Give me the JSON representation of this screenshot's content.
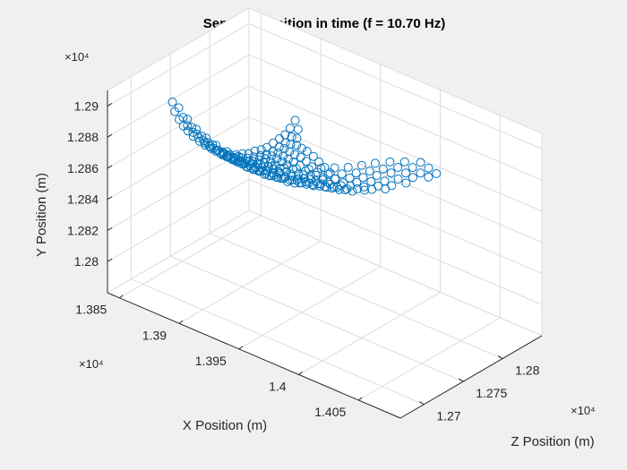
{
  "chart_data": {
    "type": "scatter3d",
    "title": "Sensors position in time (f = 10.70 Hz)",
    "xlabel": "X Position (m)",
    "ylabel": "Y Position (m)",
    "zlabel": "Z Position (m)",
    "x_multiplier": "×10⁴",
    "y_multiplier": "×10⁴",
    "z_multiplier": "×10⁴",
    "x_ticks": [
      "1.385",
      "1.39",
      "1.395",
      "1.4",
      "1.405"
    ],
    "y_ticks": [
      "1.28",
      "1.282",
      "1.284",
      "1.286",
      "1.288",
      "1.29"
    ],
    "z_ticks": [
      "1.27",
      "1.275",
      "1.28"
    ],
    "xlim": [
      13840,
      14085
    ],
    "ylim": [
      12780,
      12910
    ],
    "zlim": [
      12670,
      12850
    ],
    "grid": true,
    "marker": "open-circle",
    "color": "#0072bd",
    "chains": [
      [
        [
          13868,
          12900,
          12710
        ],
        [
          13868,
          12893,
          12713
        ],
        [
          13869,
          12887,
          12717
        ],
        [
          13870,
          12882,
          12721
        ],
        [
          13871,
          12878,
          12725
        ],
        [
          13873,
          12874,
          12729
        ],
        [
          13875,
          12870,
          12734
        ],
        [
          13877,
          12867,
          12738
        ],
        [
          13879,
          12864,
          12743
        ],
        [
          13881,
          12862,
          12748
        ],
        [
          13883,
          12860,
          12752
        ],
        [
          13885,
          12858,
          12757
        ],
        [
          13887,
          12857,
          12762
        ],
        [
          13889,
          12857,
          12767
        ],
        [
          13891,
          12856,
          12772
        ],
        [
          13893,
          12857,
          12777
        ],
        [
          13895,
          12857,
          12782
        ],
        [
          13897,
          12858,
          12786
        ],
        [
          13899,
          12860,
          12791
        ],
        [
          13901,
          12862,
          12796
        ],
        [
          13903,
          12864,
          12800
        ],
        [
          13904,
          12867,
          12805
        ],
        [
          13905,
          12871,
          12810
        ]
      ],
      [
        [
          13872,
          12897,
          12712
        ],
        [
          13873,
          12890,
          12716
        ],
        [
          13874,
          12884,
          12720
        ],
        [
          13876,
          12879,
          12724
        ],
        [
          13878,
          12875,
          12728
        ],
        [
          13880,
          12871,
          12733
        ],
        [
          13882,
          12868,
          12737
        ],
        [
          13884,
          12865,
          12742
        ],
        [
          13886,
          12862,
          12747
        ],
        [
          13888,
          12860,
          12751
        ],
        [
          13890,
          12858,
          12756
        ],
        [
          13892,
          12857,
          12761
        ],
        [
          13894,
          12856,
          12766
        ],
        [
          13896,
          12856,
          12771
        ],
        [
          13898,
          12856,
          12776
        ],
        [
          13900,
          12856,
          12781
        ],
        [
          13902,
          12857,
          12786
        ],
        [
          13904,
          12859,
          12791
        ],
        [
          13906,
          12861,
          12796
        ],
        [
          13908,
          12864,
          12801
        ],
        [
          13910,
          12868,
          12806
        ]
      ],
      [
        [
          13878,
          12891,
          12714
        ],
        [
          13879,
          12885,
          12718
        ],
        [
          13881,
          12880,
          12722
        ],
        [
          13883,
          12875,
          12727
        ],
        [
          13885,
          12871,
          12731
        ],
        [
          13887,
          12867,
          12736
        ],
        [
          13889,
          12864,
          12741
        ],
        [
          13891,
          12862,
          12745
        ],
        [
          13893,
          12860,
          12750
        ],
        [
          13895,
          12858,
          12755
        ],
        [
          13897,
          12857,
          12760
        ],
        [
          13899,
          12856,
          12765
        ],
        [
          13901,
          12856,
          12770
        ],
        [
          13903,
          12856,
          12775
        ],
        [
          13905,
          12857,
          12780
        ],
        [
          13907,
          12858,
          12785
        ],
        [
          13909,
          12860,
          12790
        ],
        [
          13911,
          12862,
          12795
        ],
        [
          13913,
          12865,
          12800
        ]
      ],
      [
        [
          13884,
          12886,
          12716
        ],
        [
          13886,
          12881,
          12720
        ],
        [
          13888,
          12876,
          12725
        ],
        [
          13890,
          12872,
          12729
        ],
        [
          13892,
          12868,
          12734
        ],
        [
          13894,
          12865,
          12739
        ],
        [
          13896,
          12862,
          12744
        ],
        [
          13898,
          12860,
          12749
        ],
        [
          13900,
          12858,
          12754
        ],
        [
          13902,
          12857,
          12759
        ],
        [
          13904,
          12856,
          12764
        ],
        [
          13906,
          12856,
          12769
        ],
        [
          13908,
          12856,
          12774
        ],
        [
          13910,
          12857,
          12779
        ],
        [
          13912,
          12858,
          12784
        ],
        [
          13914,
          12860,
          12789
        ],
        [
          13916,
          12863,
          12795
        ]
      ],
      [
        [
          13891,
          12882,
          12718
        ],
        [
          13893,
          12877,
          12723
        ],
        [
          13895,
          12873,
          12727
        ],
        [
          13897,
          12869,
          12732
        ],
        [
          13899,
          12866,
          12737
        ],
        [
          13901,
          12863,
          12742
        ],
        [
          13903,
          12861,
          12747
        ],
        [
          13905,
          12859,
          12752
        ],
        [
          13907,
          12857,
          12757
        ],
        [
          13909,
          12856,
          12762
        ],
        [
          13911,
          12856,
          12767
        ],
        [
          13913,
          12856,
          12772
        ],
        [
          13915,
          12857,
          12778
        ],
        [
          13917,
          12858,
          12783
        ],
        [
          13919,
          12860,
          12788
        ],
        [
          13921,
          12863,
          12794
        ]
      ],
      [
        [
          13898,
          12879,
          12720
        ],
        [
          13900,
          12874,
          12725
        ],
        [
          13902,
          12870,
          12730
        ],
        [
          13904,
          12867,
          12735
        ],
        [
          13906,
          12864,
          12740
        ],
        [
          13908,
          12861,
          12745
        ],
        [
          13910,
          12859,
          12750
        ],
        [
          13912,
          12857,
          12755
        ],
        [
          13914,
          12856,
          12761
        ],
        [
          13916,
          12856,
          12766
        ],
        [
          13918,
          12856,
          12771
        ],
        [
          13920,
          12857,
          12777
        ],
        [
          13922,
          12858,
          12782
        ],
        [
          13924,
          12860,
          12788
        ],
        [
          13926,
          12863,
          12793
        ]
      ],
      [
        [
          13906,
          12877,
          12722
        ],
        [
          13908,
          12872,
          12727
        ],
        [
          13910,
          12869,
          12732
        ],
        [
          13912,
          12865,
          12737
        ],
        [
          13914,
          12862,
          12743
        ],
        [
          13916,
          12860,
          12748
        ],
        [
          13918,
          12858,
          12753
        ],
        [
          13920,
          12857,
          12759
        ],
        [
          13922,
          12856,
          12764
        ],
        [
          13924,
          12856,
          12770
        ],
        [
          13926,
          12857,
          12775
        ],
        [
          13928,
          12858,
          12781
        ],
        [
          13930,
          12860,
          12786
        ],
        [
          13932,
          12862,
          12792
        ]
      ],
      [
        [
          13914,
          12876,
          12724
        ],
        [
          13916,
          12871,
          12729
        ],
        [
          13918,
          12867,
          12734
        ],
        [
          13920,
          12864,
          12740
        ],
        [
          13922,
          12861,
          12745
        ],
        [
          13924,
          12859,
          12751
        ],
        [
          13926,
          12857,
          12756
        ],
        [
          13928,
          12856,
          12762
        ],
        [
          13930,
          12856,
          12767
        ],
        [
          13932,
          12856,
          12773
        ],
        [
          13934,
          12857,
          12779
        ],
        [
          13936,
          12859,
          12784
        ],
        [
          13938,
          12861,
          12790
        ]
      ],
      [
        [
          13922,
          12875,
          12726
        ],
        [
          13924,
          12870,
          12731
        ],
        [
          13926,
          12867,
          12737
        ],
        [
          13928,
          12863,
          12742
        ],
        [
          13930,
          12861,
          12748
        ],
        [
          13932,
          12859,
          12754
        ],
        [
          13934,
          12857,
          12759
        ],
        [
          13936,
          12856,
          12765
        ],
        [
          13938,
          12856,
          12771
        ],
        [
          13940,
          12857,
          12776
        ],
        [
          13942,
          12858,
          12782
        ],
        [
          13944,
          12860,
          12788
        ]
      ],
      [
        [
          13930,
          12875,
          12728
        ],
        [
          13932,
          12870,
          12733
        ],
        [
          13934,
          12866,
          12739
        ],
        [
          13936,
          12863,
          12745
        ],
        [
          13938,
          12860,
          12750
        ],
        [
          13940,
          12858,
          12756
        ],
        [
          13942,
          12857,
          12762
        ],
        [
          13944,
          12856,
          12768
        ],
        [
          13946,
          12856,
          12774
        ],
        [
          13948,
          12857,
          12780
        ],
        [
          13950,
          12859,
          12786
        ]
      ],
      [
        [
          13938,
          12876,
          12730
        ],
        [
          13940,
          12871,
          12736
        ],
        [
          13942,
          12867,
          12741
        ],
        [
          13944,
          12864,
          12747
        ],
        [
          13946,
          12861,
          12753
        ],
        [
          13948,
          12859,
          12759
        ],
        [
          13950,
          12857,
          12765
        ],
        [
          13952,
          12857,
          12771
        ],
        [
          13954,
          12857,
          12777
        ],
        [
          13956,
          12858,
          12783
        ]
      ],
      [
        [
          13947,
          12877,
          12732
        ],
        [
          13949,
          12872,
          12738
        ],
        [
          13951,
          12868,
          12744
        ],
        [
          13953,
          12865,
          12750
        ],
        [
          13955,
          12862,
          12756
        ],
        [
          13957,
          12860,
          12762
        ],
        [
          13959,
          12858,
          12768
        ],
        [
          13961,
          12857,
          12774
        ],
        [
          13963,
          12857,
          12780
        ]
      ],
      [
        [
          13956,
          12879,
          12734
        ],
        [
          13958,
          12874,
          12740
        ],
        [
          13960,
          12870,
          12746
        ],
        [
          13962,
          12866,
          12752
        ],
        [
          13964,
          12863,
          12758
        ],
        [
          13966,
          12861,
          12764
        ],
        [
          13968,
          12859,
          12770
        ],
        [
          13970,
          12858,
          12777
        ]
      ],
      [
        [
          13965,
          12881,
          12736
        ],
        [
          13967,
          12876,
          12742
        ],
        [
          13969,
          12872,
          12748
        ],
        [
          13971,
          12868,
          12754
        ],
        [
          13973,
          12865,
          12760
        ],
        [
          13975,
          12862,
          12767
        ],
        [
          13977,
          12860,
          12773
        ]
      ],
      [
        [
          13974,
          12884,
          12738
        ],
        [
          13976,
          12879,
          12744
        ],
        [
          13978,
          12875,
          12750
        ],
        [
          13980,
          12871,
          12757
        ],
        [
          13982,
          12868,
          12763
        ],
        [
          13984,
          12865,
          12769
        ],
        [
          13986,
          12863,
          12775
        ]
      ],
      [
        [
          13984,
          12887,
          12740
        ],
        [
          13986,
          12882,
          12746
        ],
        [
          13988,
          12878,
          12753
        ],
        [
          13990,
          12874,
          12759
        ],
        [
          13992,
          12870,
          12765
        ],
        [
          13994,
          12867,
          12772
        ]
      ],
      [
        [
          13994,
          12890,
          12742
        ],
        [
          13996,
          12885,
          12749
        ],
        [
          13998,
          12881,
          12755
        ],
        [
          14000,
          12877,
          12762
        ],
        [
          14002,
          12873,
          12768
        ],
        [
          14004,
          12870,
          12774
        ]
      ],
      [
        [
          14004,
          12894,
          12744
        ],
        [
          14006,
          12889,
          12751
        ],
        [
          14008,
          12885,
          12757
        ],
        [
          14010,
          12880,
          12764
        ],
        [
          14012,
          12876,
          12770
        ]
      ],
      [
        [
          14014,
          12898,
          12746
        ],
        [
          14016,
          12893,
          12753
        ],
        [
          14018,
          12889,
          12760
        ],
        [
          14020,
          12884,
          12766
        ],
        [
          14022,
          12880,
          12773
        ]
      ],
      [
        [
          14025,
          12902,
          12748
        ],
        [
          14027,
          12897,
          12755
        ],
        [
          14029,
          12892,
          12762
        ],
        [
          14031,
          12888,
          12768
        ]
      ],
      [
        [
          14036,
          12905,
          12750
        ],
        [
          14038,
          12900,
          12757
        ],
        [
          14040,
          12895,
          12764
        ],
        [
          14042,
          12891,
          12771
        ]
      ],
      [
        [
          14048,
          12908,
          12752
        ],
        [
          14050,
          12903,
          12759
        ],
        [
          14052,
          12898,
          12766
        ]
      ]
    ]
  }
}
